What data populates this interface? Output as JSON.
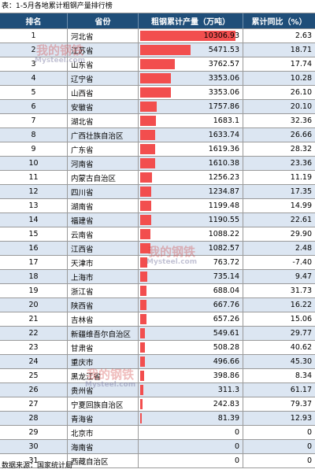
{
  "caption": "表：1-5月各地累计粗钢产量排行榜",
  "headers": {
    "rank": "排名",
    "province": "省份",
    "output": "粗钢累计产量（万吨）",
    "yoy": "累计同比（%）"
  },
  "colors": {
    "header_bg": "#1f4e79",
    "bar": "#f24e4e",
    "row_alt": "#dce6f2"
  },
  "watermark": {
    "cn": "我的钢铁",
    "en": "Mysteel.com"
  },
  "rows": [
    {
      "rank": "1",
      "province": "河北省",
      "output": "10306.93",
      "yoy": "2.63"
    },
    {
      "rank": "2",
      "province": "江苏省",
      "output": "5471.53",
      "yoy": "18.71"
    },
    {
      "rank": "3",
      "province": "山东省",
      "output": "3762.57",
      "yoy": "17.74"
    },
    {
      "rank": "4",
      "province": "辽宁省",
      "output": "3353.06",
      "yoy": "10.28"
    },
    {
      "rank": "5",
      "province": "山西省",
      "output": "3353.06",
      "yoy": "26.10"
    },
    {
      "rank": "6",
      "province": "安徽省",
      "output": "1757.86",
      "yoy": "20.10"
    },
    {
      "rank": "7",
      "province": "湖北省",
      "output": "1683.1",
      "yoy": "32.36"
    },
    {
      "rank": "8",
      "province": "广西壮族自治区",
      "output": "1633.74",
      "yoy": "26.66"
    },
    {
      "rank": "9",
      "province": "广东省",
      "output": "1619.36",
      "yoy": "28.32"
    },
    {
      "rank": "10",
      "province": "河南省",
      "output": "1610.38",
      "yoy": "23.36"
    },
    {
      "rank": "11",
      "province": "内蒙古自治区",
      "output": "1256.23",
      "yoy": "11.19"
    },
    {
      "rank": "12",
      "province": "四川省",
      "output": "1234.87",
      "yoy": "17.35"
    },
    {
      "rank": "13",
      "province": "湖南省",
      "output": "1199.48",
      "yoy": "14.99"
    },
    {
      "rank": "14",
      "province": "福建省",
      "output": "1190.55",
      "yoy": "22.61"
    },
    {
      "rank": "15",
      "province": "云南省",
      "output": "1088.22",
      "yoy": "29.90"
    },
    {
      "rank": "16",
      "province": "江西省",
      "output": "1082.57",
      "yoy": "2.48"
    },
    {
      "rank": "17",
      "province": "天津市",
      "output": "763.72",
      "yoy": "-7.40"
    },
    {
      "rank": "18",
      "province": "上海市",
      "output": "735.14",
      "yoy": "9.47"
    },
    {
      "rank": "19",
      "province": "浙江省",
      "output": "688.04",
      "yoy": "31.73"
    },
    {
      "rank": "20",
      "province": "陕西省",
      "output": "667.76",
      "yoy": "16.22"
    },
    {
      "rank": "21",
      "province": "吉林省",
      "output": "657.26",
      "yoy": "15.06"
    },
    {
      "rank": "22",
      "province": "新疆维吾尔自治区",
      "output": "549.61",
      "yoy": "29.77"
    },
    {
      "rank": "23",
      "province": "甘肃省",
      "output": "508.28",
      "yoy": "40.62"
    },
    {
      "rank": "24",
      "province": "重庆市",
      "output": "496.66",
      "yoy": "45.30"
    },
    {
      "rank": "25",
      "province": "黑龙江省",
      "output": "398.86",
      "yoy": "8.34"
    },
    {
      "rank": "26",
      "province": "贵州省",
      "output": "311.3",
      "yoy": "61.17"
    },
    {
      "rank": "27",
      "province": "宁夏回族自治区",
      "output": "242.83",
      "yoy": "79.37"
    },
    {
      "rank": "28",
      "province": "青海省",
      "output": "81.39",
      "yoy": "12.93"
    },
    {
      "rank": "29",
      "province": "北京市",
      "output": "0",
      "yoy": "0"
    },
    {
      "rank": "30",
      "province": "海南省",
      "output": "0",
      "yoy": "0"
    },
    {
      "rank": "31",
      "province": "西藏自治区",
      "output": "0",
      "yoy": "0"
    }
  ],
  "source": "数据来源：国家统计局"
}
